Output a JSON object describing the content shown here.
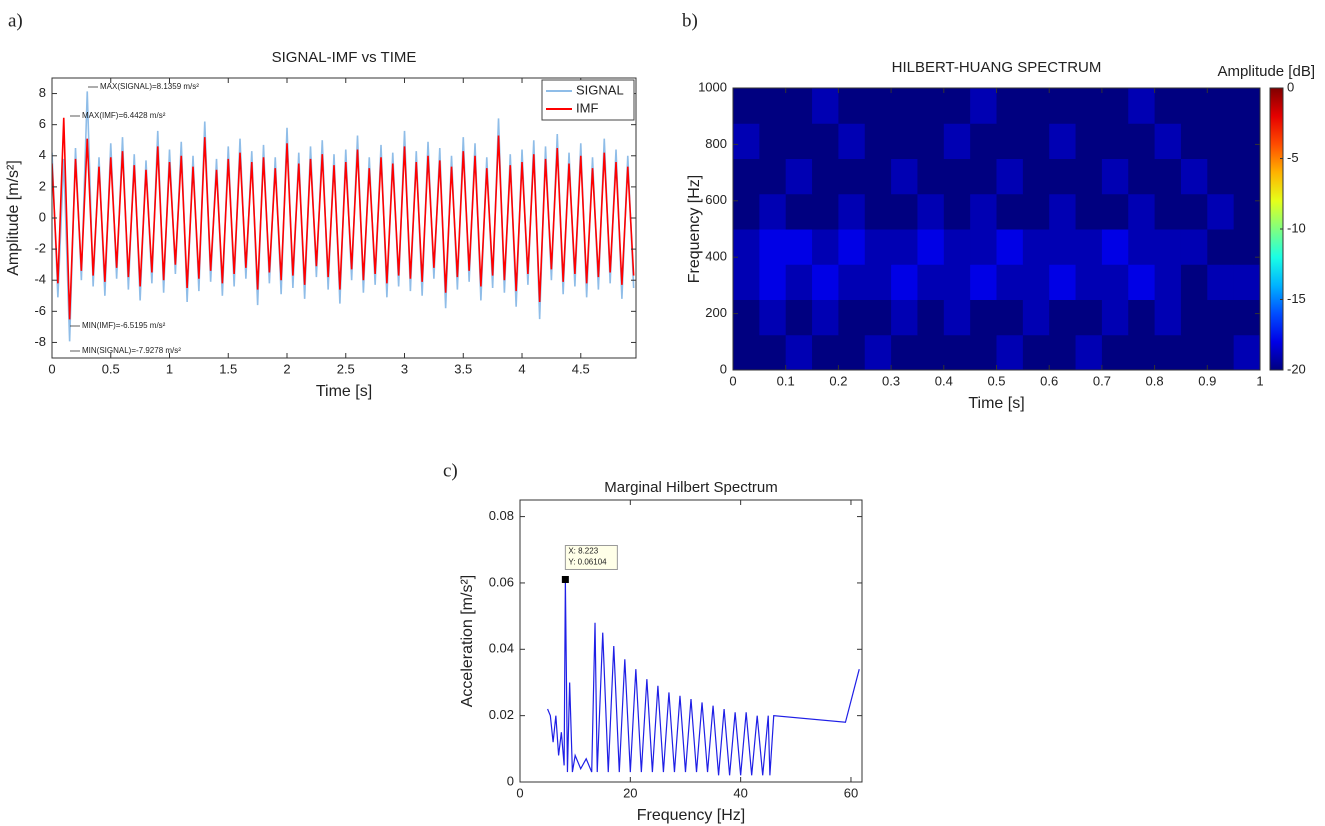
{
  "panel_labels": [
    "a)",
    "b)",
    "c)"
  ],
  "chart_data": [
    {
      "type": "line",
      "title": "SIGNAL-IMF vs TIME",
      "xlabel": "Time [s]",
      "ylabel": "Amplitude [m/s²]",
      "xlim": [
        0,
        4.97
      ],
      "ylim": [
        -9,
        9
      ],
      "xticks": [
        0,
        0.5,
        1,
        1.5,
        2,
        2.5,
        3,
        3.5,
        4,
        4.5
      ],
      "yticks": [
        -8,
        -6,
        -4,
        -2,
        0,
        2,
        4,
        6,
        8
      ],
      "legend": "upper right",
      "annotations": [
        "MAX(SIGNAL)=8.1359 m/s²",
        "MAX(IMF)=6.4428 m/s²",
        "MIN(IMF)=-6.5195 m/s²",
        "MIN(SIGNAL)=-7.9278 m/s²"
      ],
      "x": [
        0,
        0.05,
        0.1,
        0.15,
        0.2,
        0.25,
        0.3,
        0.35,
        0.4,
        0.45,
        0.5,
        0.55,
        0.6,
        0.65,
        0.7,
        0.75,
        0.8,
        0.85,
        0.9,
        0.95,
        1,
        1.05,
        1.1,
        1.15,
        1.2,
        1.25,
        1.3,
        1.35,
        1.4,
        1.45,
        1.5,
        1.55,
        1.6,
        1.65,
        1.7,
        1.75,
        1.8,
        1.85,
        1.9,
        1.95,
        2,
        2.05,
        2.1,
        2.15,
        2.2,
        2.25,
        2.3,
        2.35,
        2.4,
        2.45,
        2.5,
        2.55,
        2.6,
        2.65,
        2.7,
        2.75,
        2.8,
        2.85,
        2.9,
        2.95,
        3,
        3.05,
        3.1,
        3.15,
        3.2,
        3.25,
        3.3,
        3.35,
        3.4,
        3.45,
        3.5,
        3.55,
        3.6,
        3.65,
        3.7,
        3.75,
        3.8,
        3.85,
        3.9,
        3.95,
        4,
        4.05,
        4.1,
        4.15,
        4.2,
        4.25,
        4.3,
        4.35,
        4.4,
        4.45,
        4.5,
        4.55,
        4.6,
        4.65,
        4.7,
        4.75,
        4.8,
        4.85,
        4.9,
        4.95
      ],
      "series": [
        {
          "name": "SIGNAL",
          "color": "#8fbde8",
          "values": [
            4.2,
            -5.1,
            3.8,
            -7.9278,
            4.5,
            -4.0,
            8.1359,
            -4.4,
            3.9,
            -5.0,
            4.8,
            -3.9,
            5.2,
            -4.6,
            4.1,
            -5.3,
            3.7,
            -4.2,
            5.6,
            -4.8,
            4.4,
            -3.6,
            4.9,
            -5.4,
            4.0,
            -4.7,
            6.2,
            -4.1,
            3.8,
            -5.0,
            4.6,
            -4.4,
            5.1,
            -3.9,
            4.3,
            -5.6,
            4.7,
            -4.2,
            3.9,
            -4.9,
            5.8,
            -4.5,
            4.2,
            -5.2,
            4.6,
            -3.8,
            5.0,
            -4.6,
            4.1,
            -5.5,
            4.4,
            -4.0,
            5.3,
            -4.8,
            3.9,
            -4.3,
            4.7,
            -5.1,
            4.2,
            -4.4,
            5.6,
            -4.7,
            4.3,
            -5.0,
            4.9,
            -3.9,
            4.5,
            -5.8,
            4.0,
            -4.6,
            5.2,
            -4.1,
            4.8,
            -5.3,
            3.9,
            -4.5,
            6.4,
            -4.8,
            4.1,
            -5.7,
            4.4,
            -4.3,
            5.0,
            -6.5,
            4.6,
            -4.0,
            5.4,
            -4.9,
            4.2,
            -4.4,
            4.8,
            -5.1,
            3.9,
            -4.6,
            5.1,
            -4.2,
            4.4,
            -5.2,
            4.0,
            -4.5
          ]
        },
        {
          "name": "IMF",
          "color": "#ff0000",
          "values": [
            3.5,
            -4.2,
            6.4428,
            -6.5195,
            3.8,
            -3.4,
            5.1,
            -3.7,
            3.3,
            -4.1,
            3.9,
            -3.2,
            4.3,
            -3.8,
            3.4,
            -4.4,
            3.1,
            -3.5,
            4.6,
            -4.0,
            3.6,
            -3.0,
            4.0,
            -4.5,
            3.3,
            -3.9,
            5.2,
            -3.4,
            3.1,
            -4.2,
            3.8,
            -3.6,
            4.2,
            -3.2,
            3.6,
            -4.6,
            3.9,
            -3.5,
            3.2,
            -4.0,
            4.8,
            -3.7,
            3.5,
            -4.3,
            3.8,
            -3.1,
            4.1,
            -3.8,
            3.4,
            -4.6,
            3.6,
            -3.3,
            4.4,
            -4.0,
            3.2,
            -3.6,
            3.9,
            -4.2,
            3.5,
            -3.7,
            4.6,
            -3.9,
            3.6,
            -4.1,
            4.0,
            -3.2,
            3.7,
            -4.8,
            3.3,
            -3.8,
            4.3,
            -3.4,
            4.0,
            -4.4,
            3.2,
            -3.7,
            5.3,
            -4.0,
            3.4,
            -4.7,
            3.6,
            -3.6,
            4.1,
            -5.4,
            3.8,
            -3.3,
            4.5,
            -4.1,
            3.5,
            -3.6,
            4.0,
            -4.2,
            3.2,
            -3.8,
            4.2,
            -3.5,
            3.6,
            -4.3,
            3.3,
            -3.7
          ]
        }
      ]
    },
    {
      "type": "heatmap",
      "title": "HILBERT-HUANG SPECTRUM",
      "xlabel": "Time [s]",
      "ylabel": "Frequency [Hz]",
      "colorbar_label": "Amplitude [dB]",
      "colormap": "jet",
      "xlim": [
        0,
        1
      ],
      "ylim": [
        0,
        1000
      ],
      "clim": [
        -20,
        0
      ],
      "xticks": [
        0,
        0.1,
        0.2,
        0.3,
        0.4,
        0.5,
        0.6,
        0.7,
        0.8,
        0.9,
        1
      ],
      "yticks": [
        0,
        200,
        400,
        600,
        800,
        1000
      ],
      "cticks": [
        0,
        -5,
        -10,
        -15,
        -20
      ],
      "z": [
        [
          -20,
          -20,
          -19,
          -20,
          -20,
          -19,
          -20,
          -20,
          -20,
          -20,
          -19,
          -20,
          -20,
          -19,
          -20,
          -20,
          -20,
          -20,
          -20,
          -19
        ],
        [
          -20,
          -19,
          -20,
          -19,
          -20,
          -20,
          -19,
          -20,
          -19,
          -20,
          -20,
          -19,
          -20,
          -20,
          -19,
          -20,
          -19,
          -20,
          -20,
          -20
        ],
        [
          -19,
          -18,
          -19,
          -18,
          -19,
          -19,
          -18,
          -19,
          -19,
          -18,
          -19,
          -19,
          -18,
          -19,
          -19,
          -18,
          -19,
          -20,
          -19,
          -19
        ],
        [
          -19,
          -18,
          -18,
          -19,
          -18,
          -19,
          -19,
          -18,
          -19,
          -19,
          -18,
          -19,
          -19,
          -19,
          -18,
          -19,
          -19,
          -19,
          -20,
          -20
        ],
        [
          -20,
          -19,
          -20,
          -20,
          -19,
          -20,
          -20,
          -19,
          -20,
          -19,
          -20,
          -20,
          -19,
          -20,
          -20,
          -19,
          -20,
          -20,
          -19,
          -20
        ],
        [
          -20,
          -20,
          -19,
          -20,
          -20,
          -20,
          -19,
          -20,
          -20,
          -20,
          -19,
          -20,
          -20,
          -20,
          -19,
          -20,
          -20,
          -19,
          -20,
          -20
        ],
        [
          -19,
          -20,
          -20,
          -20,
          -19,
          -20,
          -20,
          -20,
          -19,
          -20,
          -20,
          -20,
          -19,
          -20,
          -20,
          -20,
          -19,
          -20,
          -20,
          -20
        ],
        [
          -20,
          -20,
          -20,
          -19,
          -20,
          -20,
          -20,
          -20,
          -20,
          -19,
          -20,
          -20,
          -20,
          -20,
          -20,
          -19,
          -20,
          -20,
          -20,
          -20
        ]
      ]
    },
    {
      "type": "line",
      "title": "Marginal Hilbert Spectrum",
      "xlabel": "Frequency [Hz]",
      "ylabel": "Acceleration [m/s²]",
      "xlim": [
        0,
        62
      ],
      "ylim": [
        0,
        0.085
      ],
      "xticks": [
        0,
        20,
        40,
        60
      ],
      "yticks": [
        0,
        0.02,
        0.04,
        0.06,
        0.08
      ],
      "datatip": {
        "x": 8.223,
        "y": 0.06104,
        "labels": [
          "X: 8.223",
          "Y: 0.06104"
        ]
      },
      "x": [
        5,
        5.5,
        6,
        6.5,
        7,
        7.5,
        8,
        8.223,
        8.6,
        9,
        9.5,
        10,
        11,
        12,
        13,
        13.6,
        14,
        15,
        16,
        17,
        18,
        19,
        20,
        21,
        22,
        23,
        24,
        25,
        26,
        27,
        28,
        29,
        30,
        31,
        32,
        33,
        34,
        35,
        36,
        37,
        38,
        39,
        40,
        41,
        42,
        43,
        44,
        45,
        45.3,
        46,
        59,
        61.5
      ],
      "series": [
        {
          "color": "#1f1fe6",
          "values": [
            0.022,
            0.02,
            0.012,
            0.02,
            0.008,
            0.015,
            0.005,
            0.06104,
            0.003,
            0.03,
            0.003,
            0.008,
            0.004,
            0.007,
            0.003,
            0.048,
            0.003,
            0.045,
            0.003,
            0.041,
            0.003,
            0.037,
            0.003,
            0.034,
            0.003,
            0.031,
            0.003,
            0.029,
            0.003,
            0.027,
            0.003,
            0.026,
            0.003,
            0.025,
            0.003,
            0.024,
            0.003,
            0.023,
            0.002,
            0.022,
            0.002,
            0.021,
            0.002,
            0.021,
            0.002,
            0.02,
            0.002,
            0.02,
            0.002,
            0.02,
            0.018,
            0.034
          ]
        }
      ]
    }
  ]
}
